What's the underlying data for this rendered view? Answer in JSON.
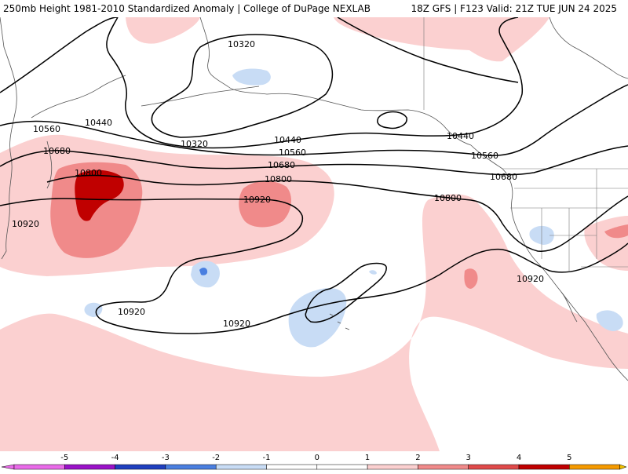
{
  "header": {
    "title_left": "250mb Height 1981-2010 Standardized Anomaly | College of DuPage NEXLAB",
    "title_right": "18Z GFS | F123 Valid: 21Z TUE JUN 24 2025"
  },
  "colors": {
    "neg5": "#e96be9",
    "neg4": "#9a12c8",
    "neg3": "#1f3fbf",
    "neg2": "#4a7fe0",
    "neg1": "#c8dcf5",
    "zero_neg": "#ffffff",
    "zero_pos": "#ffffff",
    "pos1": "#fbd0d0",
    "pos2": "#f08a8a",
    "pos3": "#e04a4a",
    "pos4": "#c00000",
    "pos5": "#f59a00",
    "pos6": "#f0c000"
  },
  "map": {
    "contour_labels": [
      "10320",
      "10440",
      "10320",
      "10560",
      "10440",
      "10440",
      "10680",
      "10560",
      "10800",
      "10680",
      "10560",
      "10800",
      "10680",
      "10920",
      "10800",
      "10920",
      "10920",
      "10920",
      "10920"
    ]
  },
  "colorbar": {
    "tick_labels": [
      "-5",
      "-4",
      "-3",
      "-2",
      "-1",
      "0",
      "1",
      "2",
      "3",
      "4",
      "5"
    ]
  }
}
